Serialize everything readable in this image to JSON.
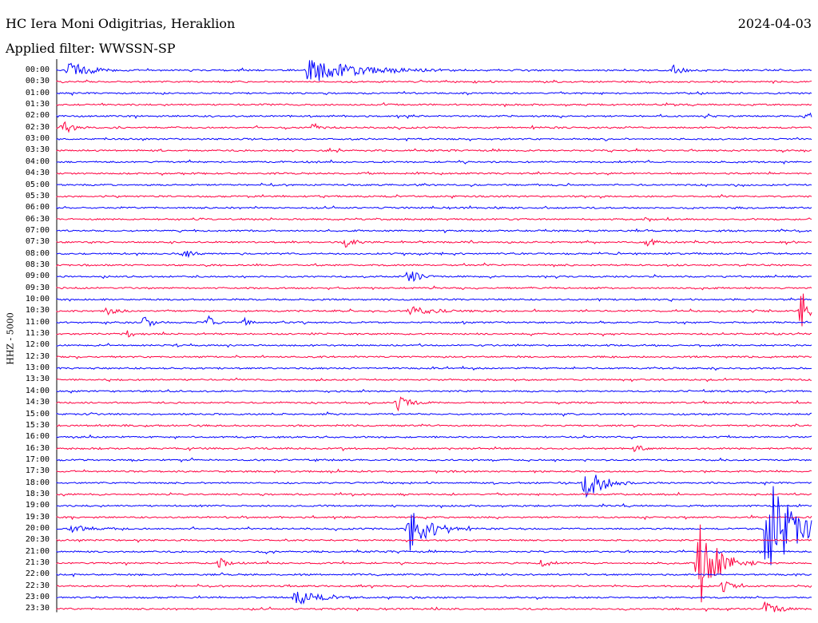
{
  "header": {
    "station": "HC Iera Moni Odigitrias, Heraklion",
    "date": "2024-04-03",
    "filter": "Applied filter: WWSSN-SP",
    "channel_label": "HHZ - 5000"
  },
  "chart_data": {
    "type": "line",
    "title": "HC Iera Moni Odigitrias, Heraklion",
    "ylabel": "HHZ - 5000",
    "trace_colors": [
      "#0000ff",
      "#ff0040"
    ],
    "row_labels": [
      "00:00",
      "00:30",
      "01:00",
      "01:30",
      "02:00",
      "02:30",
      "03:00",
      "03:30",
      "04:00",
      "04:30",
      "05:00",
      "05:30",
      "06:00",
      "06:30",
      "07:00",
      "07:30",
      "08:00",
      "08:30",
      "09:00",
      "09:30",
      "10:00",
      "10:30",
      "11:00",
      "11:30",
      "12:00",
      "12:30",
      "13:00",
      "13:30",
      "14:00",
      "14:30",
      "15:00",
      "15:30",
      "16:00",
      "16:30",
      "17:00",
      "17:30",
      "18:00",
      "18:30",
      "19:00",
      "19:30",
      "20:00",
      "20:30",
      "21:00",
      "21:30",
      "22:00",
      "22:30",
      "23:00",
      "23:30"
    ],
    "minutes_per_row": 30,
    "events": [
      {
        "row": "00:00",
        "minute": 0.5,
        "amp": 0.9,
        "dur": 1.0
      },
      {
        "row": "00:00",
        "minute": 10.0,
        "amp": 1.2,
        "dur": 2.5
      },
      {
        "row": "00:00",
        "minute": 24.5,
        "amp": 0.4,
        "dur": 0.6
      },
      {
        "row": "02:00",
        "minute": 29.8,
        "amp": 0.7,
        "dur": 0.2
      },
      {
        "row": "02:30",
        "minute": 0.3,
        "amp": 0.5,
        "dur": 0.6
      },
      {
        "row": "02:30",
        "minute": 10.2,
        "amp": 0.4,
        "dur": 0.4
      },
      {
        "row": "07:30",
        "minute": 11.5,
        "amp": 0.6,
        "dur": 0.4
      },
      {
        "row": "07:30",
        "minute": 23.5,
        "amp": 0.5,
        "dur": 0.4
      },
      {
        "row": "08:00",
        "minute": 5.0,
        "amp": 0.6,
        "dur": 0.5
      },
      {
        "row": "09:00",
        "minute": 14.0,
        "amp": 0.6,
        "dur": 0.6
      },
      {
        "row": "10:30",
        "minute": 2.0,
        "amp": 0.4,
        "dur": 0.5
      },
      {
        "row": "10:30",
        "minute": 14.0,
        "amp": 0.4,
        "dur": 1.5
      },
      {
        "row": "10:30",
        "minute": 29.6,
        "amp": 2.4,
        "dur": 0.4
      },
      {
        "row": "11:00",
        "minute": 3.5,
        "amp": 0.6,
        "dur": 0.4
      },
      {
        "row": "11:00",
        "minute": 6.0,
        "amp": 0.7,
        "dur": 0.3
      },
      {
        "row": "11:00",
        "minute": 7.5,
        "amp": 0.5,
        "dur": 0.2
      },
      {
        "row": "11:30",
        "minute": 2.8,
        "amp": 0.5,
        "dur": 0.3
      },
      {
        "row": "14:30",
        "minute": 13.6,
        "amp": 0.8,
        "dur": 0.6
      },
      {
        "row": "16:30",
        "minute": 23.0,
        "amp": 0.4,
        "dur": 0.4
      },
      {
        "row": "18:00",
        "minute": 21.0,
        "amp": 1.6,
        "dur": 1.0
      },
      {
        "row": "20:00",
        "minute": 0.5,
        "amp": 0.4,
        "dur": 1.0
      },
      {
        "row": "20:00",
        "minute": 14.0,
        "amp": 2.6,
        "dur": 1.0
      },
      {
        "row": "21:30",
        "minute": 6.5,
        "amp": 0.5,
        "dur": 0.4
      },
      {
        "row": "21:30",
        "minute": 19.3,
        "amp": 0.6,
        "dur": 0.3
      },
      {
        "row": "21:30",
        "minute": 25.5,
        "amp": 4.5,
        "dur": 1.0
      },
      {
        "row": "20:00",
        "minute": 28.2,
        "amp": 5.5,
        "dur": 1.5
      },
      {
        "row": "22:30",
        "minute": 26.5,
        "amp": 0.6,
        "dur": 0.5
      },
      {
        "row": "23:00",
        "minute": 9.5,
        "amp": 0.7,
        "dur": 1.2
      },
      {
        "row": "23:30",
        "minute": 28.2,
        "amp": 0.9,
        "dur": 0.6
      }
    ]
  }
}
